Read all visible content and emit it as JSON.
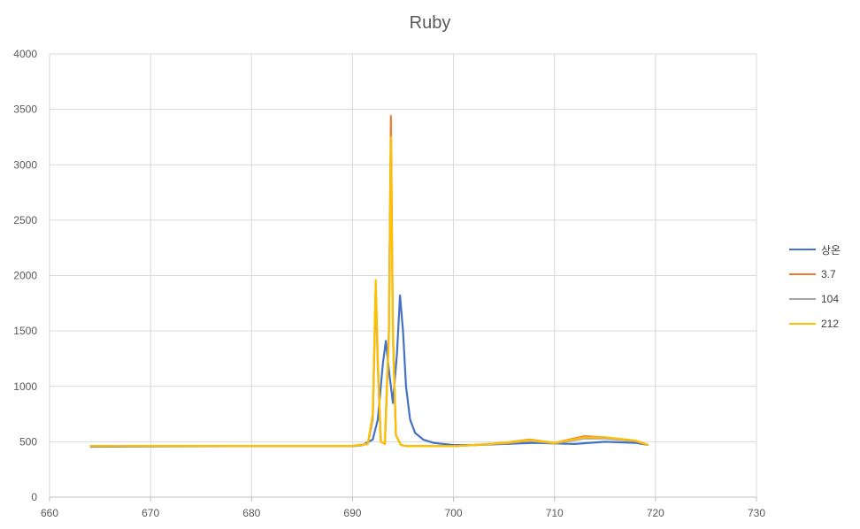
{
  "chart_data": {
    "type": "line",
    "title": "Ruby",
    "xlabel": "",
    "ylabel": "",
    "xlim": [
      660,
      730
    ],
    "ylim": [
      0,
      4000
    ],
    "x_ticks": [
      660,
      670,
      680,
      690,
      700,
      710,
      720,
      730
    ],
    "y_ticks": [
      0,
      500,
      1000,
      1500,
      2000,
      2500,
      3000,
      3500,
      4000
    ],
    "grid": true,
    "legend_position": "right",
    "series": [
      {
        "name": "상온",
        "color": "#4472C4",
        "x": [
          664,
          670,
          680,
          690,
          691,
          692,
          692.5,
          693,
          693.3,
          693.6,
          694,
          694.4,
          694.7,
          695,
          695.3,
          695.7,
          696.2,
          697,
          698,
          700,
          702,
          705,
          708,
          710,
          712,
          715,
          718,
          719.3
        ],
        "y": [
          455,
          458,
          460,
          460,
          470,
          520,
          700,
          1200,
          1410,
          1150,
          850,
          1300,
          1820,
          1500,
          1000,
          700,
          580,
          520,
          490,
          470,
          470,
          480,
          490,
          485,
          480,
          500,
          490,
          470
        ]
      },
      {
        "name": "3.7",
        "color": "#ED7D31",
        "x": [
          664,
          670,
          680,
          690,
          691.5,
          692,
          692.3,
          692.5,
          692.8,
          693.2,
          693.6,
          693.8,
          694,
          694.3,
          694.8,
          695.5,
          697,
          700,
          702,
          705,
          707.5,
          710,
          713,
          715,
          718,
          719.3
        ],
        "y": [
          460,
          462,
          462,
          462,
          480,
          700,
          1900,
          1200,
          500,
          480,
          1500,
          3440,
          1500,
          560,
          470,
          460,
          460,
          460,
          470,
          490,
          520,
          490,
          550,
          540,
          510,
          470
        ]
      },
      {
        "name": "104",
        "color": "#A5A5A5",
        "x": [
          664,
          670,
          680,
          690,
          691.5,
          692,
          692.3,
          692.5,
          692.8,
          693.2,
          693.6,
          693.8,
          694,
          694.3,
          694.8,
          695.5,
          697,
          700,
          702,
          705,
          707.5,
          710,
          713,
          715,
          718,
          719.3
        ],
        "y": [
          460,
          462,
          462,
          462,
          480,
          700,
          1880,
          1200,
          500,
          480,
          1450,
          3230,
          1450,
          560,
          470,
          460,
          460,
          460,
          470,
          485,
          510,
          485,
          530,
          530,
          505,
          470
        ]
      },
      {
        "name": "212",
        "color": "#FFC000",
        "x": [
          664,
          670,
          680,
          690,
          691.5,
          692,
          692.3,
          692.5,
          692.8,
          693.2,
          693.6,
          693.8,
          694,
          694.3,
          694.8,
          695.5,
          697,
          700,
          702,
          705,
          707.5,
          710,
          713,
          715,
          718,
          719.3
        ],
        "y": [
          460,
          462,
          462,
          462,
          480,
          750,
          1960,
          1250,
          500,
          480,
          1450,
          3250,
          1450,
          560,
          470,
          460,
          460,
          460,
          470,
          490,
          515,
          490,
          540,
          540,
          510,
          470
        ]
      }
    ]
  }
}
